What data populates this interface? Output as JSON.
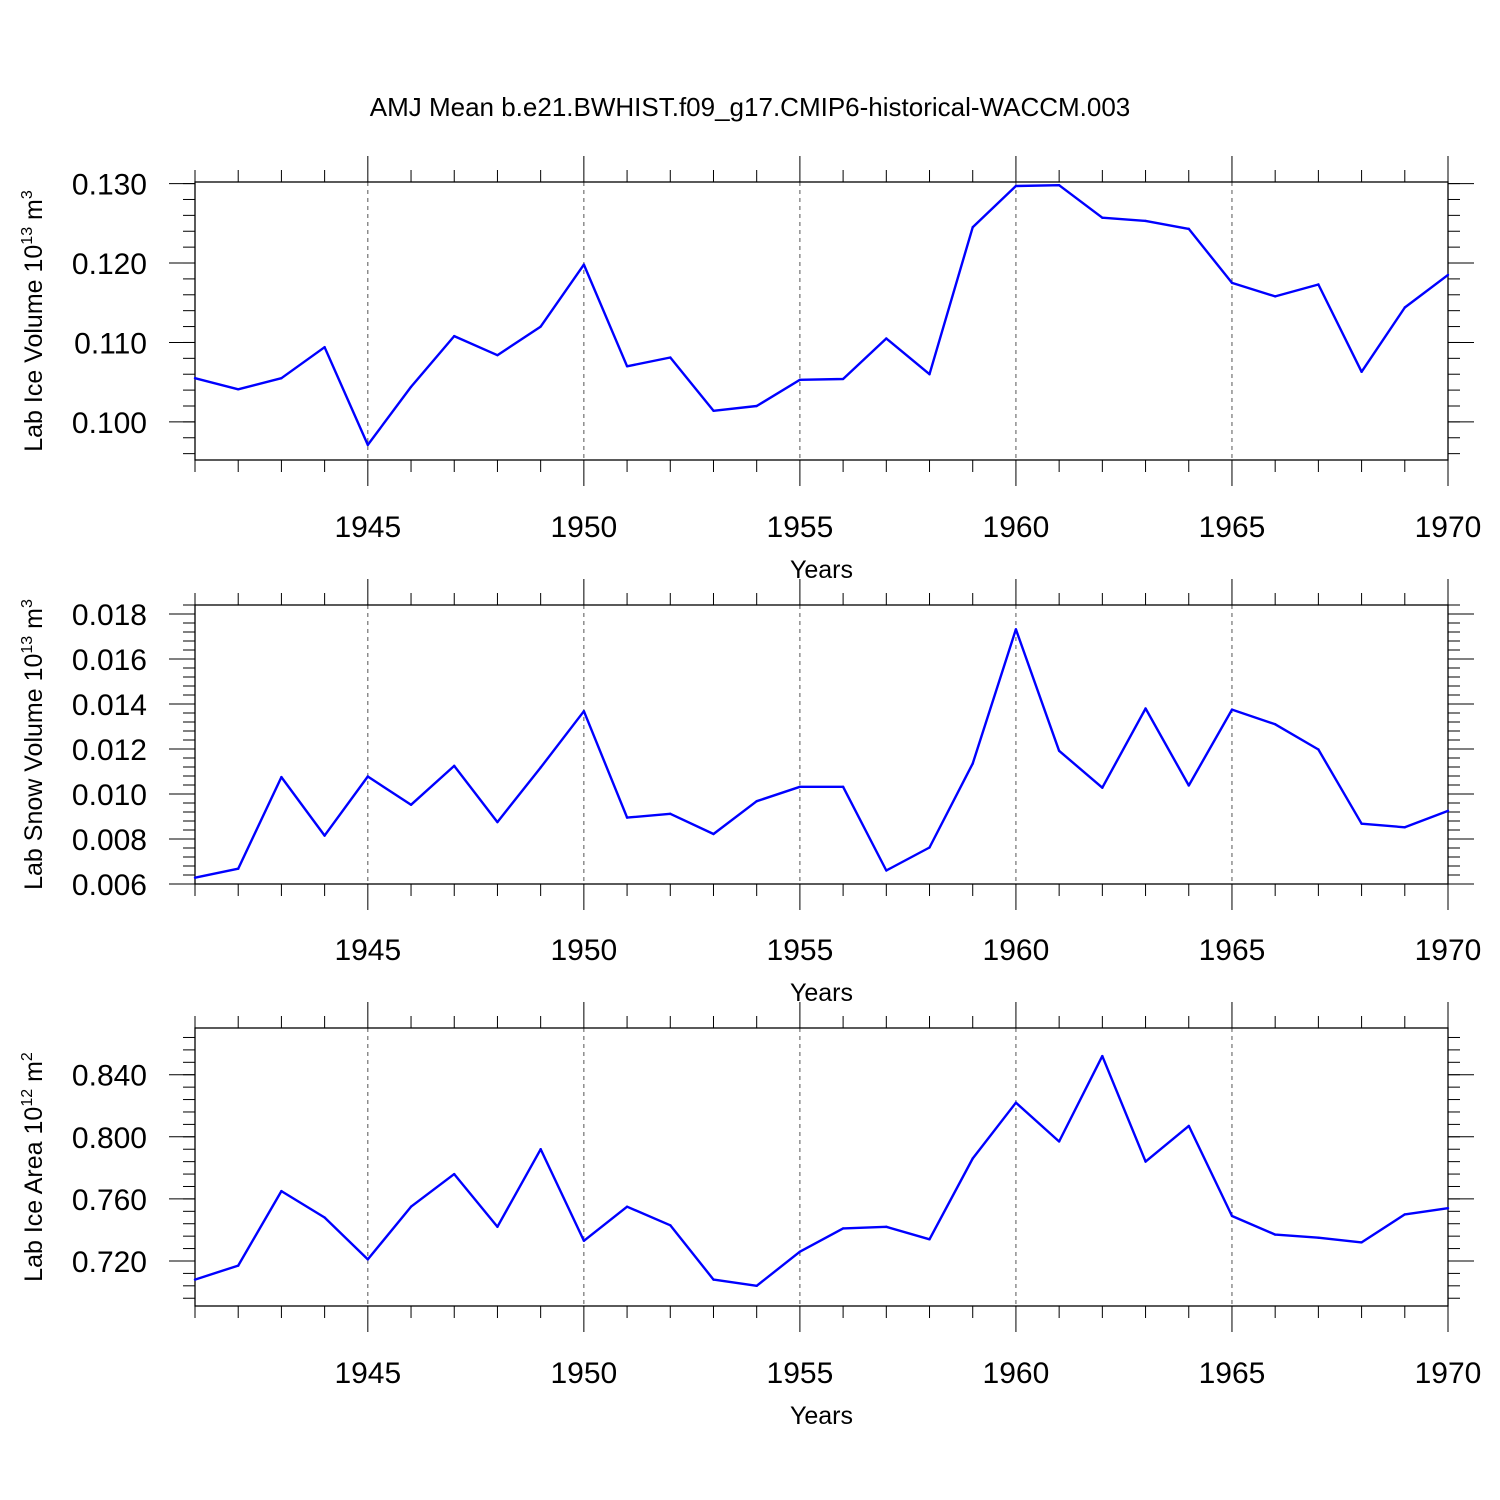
{
  "title": "AMJ Mean b.e21.BWHIST.f09_g17.CMIP6-historical-WACCM.003",
  "colors": {
    "line": "#0000ff",
    "axis": "#000000",
    "grid": "#555555"
  },
  "chart_data": [
    {
      "type": "line",
      "xlabel": "Years",
      "ylabel": {
        "text": "Lab Ice Volume 10",
        "exp": "13",
        "unit": " m",
        "unit_exp": "3"
      },
      "xlim": [
        1941,
        1970
      ],
      "ylim": [
        0.0952,
        0.1302
      ],
      "ytick_values": [
        0.1,
        0.11,
        0.12,
        0.13
      ],
      "ytick_labels": [
        "0.100",
        "0.110",
        "0.120",
        "0.130"
      ],
      "yminor_step": 0.002,
      "xtick_values": [
        1945,
        1950,
        1955,
        1960,
        1965,
        1970
      ],
      "xtick_labels": [
        "1945",
        "1950",
        "1955",
        "1960",
        "1965",
        "1970"
      ],
      "grid_x": [
        1945,
        1950,
        1955,
        1960,
        1965
      ],
      "x": [
        1941,
        1942,
        1943,
        1944,
        1945,
        1946,
        1947,
        1948,
        1949,
        1950,
        1951,
        1952,
        1953,
        1954,
        1955,
        1956,
        1957,
        1958,
        1959,
        1960,
        1961,
        1962,
        1963,
        1964,
        1965,
        1966,
        1967,
        1968,
        1969,
        1970
      ],
      "series": [
        {
          "name": "Lab Ice Volume",
          "values": [
            0.1055,
            0.1041,
            0.1055,
            0.1094,
            0.0971,
            0.1044,
            0.1108,
            0.1084,
            0.112,
            0.1198,
            0.107,
            0.1081,
            0.1014,
            0.102,
            0.1053,
            0.1054,
            0.1105,
            0.106,
            0.1245,
            0.1297,
            0.1298,
            0.1257,
            0.1253,
            0.1243,
            0.1175,
            0.1158,
            0.1173,
            0.1063,
            0.1144,
            0.1185
          ]
        }
      ]
    },
    {
      "type": "line",
      "xlabel": "Years",
      "ylabel": {
        "text": "Lab Snow Volume 10",
        "exp": "13",
        "unit": " m",
        "unit_exp": "3"
      },
      "xlim": [
        1941,
        1970
      ],
      "ylim": [
        0.006,
        0.0184
      ],
      "ytick_values": [
        0.006,
        0.008,
        0.01,
        0.012,
        0.014,
        0.016,
        0.018
      ],
      "ytick_labels": [
        "0.006",
        "0.008",
        "0.010",
        "0.012",
        "0.014",
        "0.016",
        "0.018"
      ],
      "yminor_step": 0.0004,
      "xtick_values": [
        1945,
        1950,
        1955,
        1960,
        1965,
        1970
      ],
      "xtick_labels": [
        "1945",
        "1950",
        "1955",
        "1960",
        "1965",
        "1970"
      ],
      "grid_x": [
        1945,
        1950,
        1955,
        1960,
        1965
      ],
      "x": [
        1941,
        1942,
        1943,
        1944,
        1945,
        1946,
        1947,
        1948,
        1949,
        1950,
        1951,
        1952,
        1953,
        1954,
        1955,
        1956,
        1957,
        1958,
        1959,
        1960,
        1961,
        1962,
        1963,
        1964,
        1965,
        1966,
        1967,
        1968,
        1969,
        1970
      ],
      "series": [
        {
          "name": "Lab Snow Volume",
          "values": [
            0.00628,
            0.00668,
            0.01075,
            0.00815,
            0.01078,
            0.00952,
            0.01125,
            0.00875,
            0.01118,
            0.01368,
            0.00895,
            0.00912,
            0.00822,
            0.00968,
            0.01032,
            0.01032,
            0.0066,
            0.00762,
            0.01135,
            0.01732,
            0.01192,
            0.01028,
            0.0138,
            0.01038,
            0.01375,
            0.0131,
            0.01198,
            0.00868,
            0.00852,
            0.00925
          ]
        }
      ]
    },
    {
      "type": "line",
      "xlabel": "Years",
      "ylabel": {
        "text": "Lab Ice Area 10",
        "exp": "12",
        "unit": " m",
        "unit_exp": "2"
      },
      "xlim": [
        1941,
        1970
      ],
      "ylim": [
        0.691,
        0.8701
      ],
      "ytick_values": [
        0.72,
        0.76,
        0.8,
        0.84
      ],
      "ytick_labels": [
        "0.720",
        "0.760",
        "0.800",
        "0.840"
      ],
      "yminor_step": 0.008,
      "xtick_values": [
        1945,
        1950,
        1955,
        1960,
        1965,
        1970
      ],
      "xtick_labels": [
        "1945",
        "1950",
        "1955",
        "1960",
        "1965",
        "1970"
      ],
      "grid_x": [
        1945,
        1950,
        1955,
        1960,
        1965
      ],
      "x": [
        1941,
        1942,
        1943,
        1944,
        1945,
        1946,
        1947,
        1948,
        1949,
        1950,
        1951,
        1952,
        1953,
        1954,
        1955,
        1956,
        1957,
        1958,
        1959,
        1960,
        1961,
        1962,
        1963,
        1964,
        1965,
        1966,
        1967,
        1968,
        1969,
        1970
      ],
      "series": [
        {
          "name": "Lab Ice Area",
          "values": [
            0.708,
            0.717,
            0.765,
            0.748,
            0.721,
            0.755,
            0.776,
            0.742,
            0.792,
            0.733,
            0.755,
            0.743,
            0.708,
            0.704,
            0.726,
            0.741,
            0.742,
            0.734,
            0.786,
            0.822,
            0.797,
            0.852,
            0.784,
            0.807,
            0.749,
            0.737,
            0.735,
            0.732,
            0.75,
            0.754
          ]
        }
      ]
    }
  ]
}
